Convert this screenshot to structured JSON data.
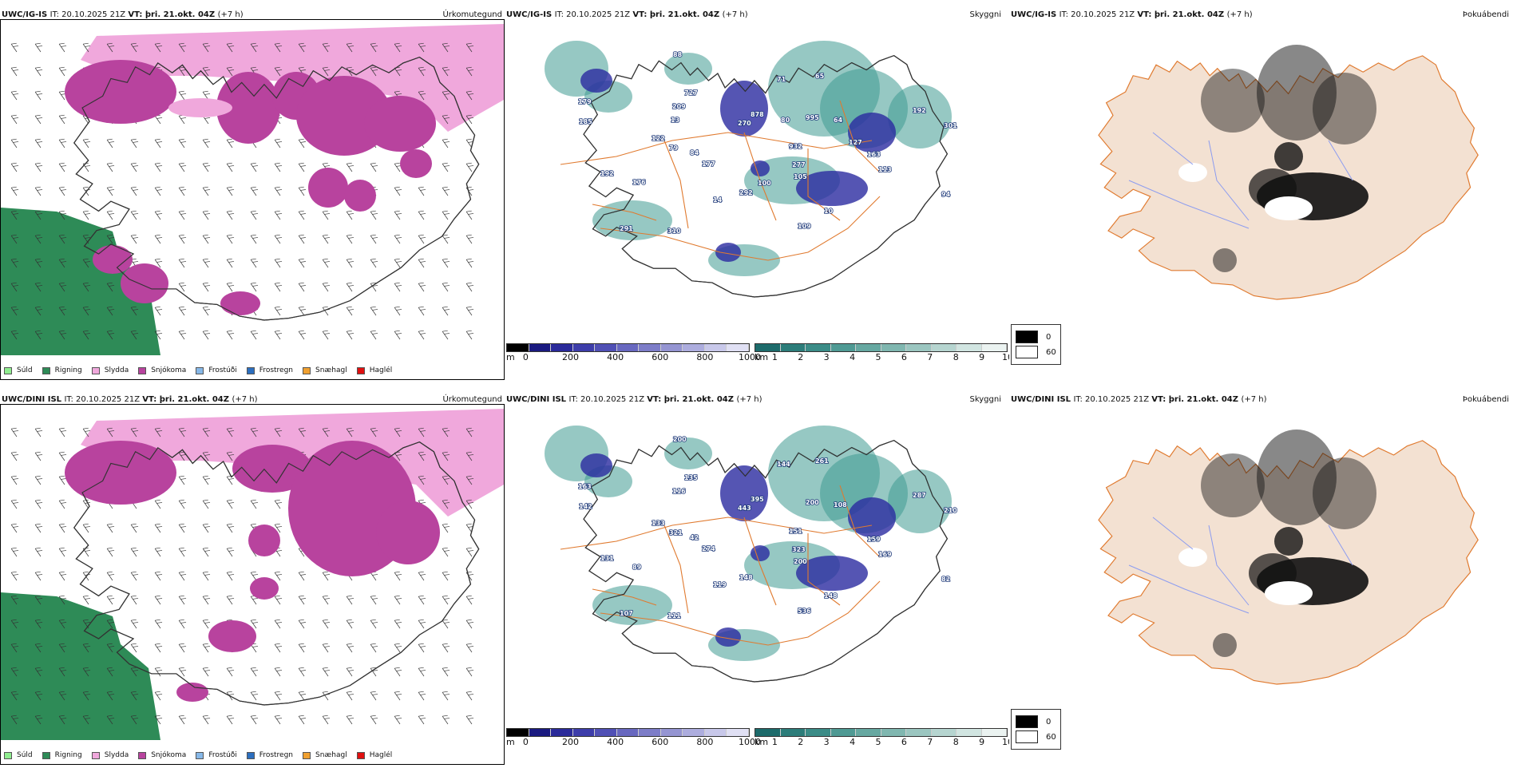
{
  "rows": [
    {
      "model": "UWC/IG-IS",
      "it_label": "IT:",
      "it_value": "20.10.2025 21Z",
      "vt_label": "VT:",
      "vt_value": "þri. 21.okt. 04Z",
      "lead": "(+7 h)",
      "cloud_labels": [
        "932",
        "177",
        "878",
        "105",
        "122",
        "64",
        "14",
        "727",
        "113",
        "192",
        "65",
        "109",
        "179",
        "301",
        "291",
        "270",
        "277",
        "79",
        "995",
        "292",
        "209",
        "163",
        "176",
        "71",
        "10",
        "185",
        "192",
        "310",
        "88",
        "94",
        "84",
        "80",
        "100",
        "13",
        "127"
      ]
    },
    {
      "model": "UWC/DINI ISL",
      "it_label": "IT:",
      "it_value": "20.10.2025 21Z",
      "vt_label": "VT:",
      "vt_value": "þri. 21.okt. 04Z",
      "lead": "(+7 h)",
      "cloud_labels": [
        "151",
        "274",
        "395",
        "200",
        "133",
        "108",
        "119",
        "135",
        "169",
        "131",
        "261",
        "536",
        "163",
        "210",
        "107",
        "443",
        "323",
        "321",
        "200",
        "148",
        "116",
        "159",
        "89",
        "144",
        "148",
        "142",
        "287",
        "111",
        "200",
        "82",
        "42"
      ]
    }
  ],
  "panel_titles": {
    "precip": "Úrkomutegund",
    "clouds": "Skyggni",
    "fog": "Þokuábendi"
  },
  "precip_legend": [
    {
      "label": "Súld",
      "color": "#90ee90"
    },
    {
      "label": "Rigning",
      "color": "#2e8b57"
    },
    {
      "label": "Slydda",
      "color": "#f0a8dc"
    },
    {
      "label": "Snjókoma",
      "color": "#b8439e"
    },
    {
      "label": "Frostúði",
      "color": "#87b8e8"
    },
    {
      "label": "Frostregn",
      "color": "#2c6fbf"
    },
    {
      "label": "Snæhagl",
      "color": "#f0a030"
    },
    {
      "label": "Haglél",
      "color": "#e01010"
    }
  ],
  "colorbar_m": {
    "unit": "m",
    "ticks": [
      "0",
      "200",
      "400",
      "600",
      "800",
      "1000"
    ],
    "colors": [
      "#000000",
      "#1a1a80",
      "#2a2a9a",
      "#3d3daa",
      "#5050b5",
      "#6868c0",
      "#7d7dc8",
      "#9595d2",
      "#adadde",
      "#c8c8ea",
      "#e0e0f4"
    ]
  },
  "colorbar_km": {
    "unit": "km",
    "ticks": [
      "1",
      "2",
      "3",
      "4",
      "5",
      "6",
      "7",
      "8",
      "9",
      "10"
    ],
    "colors": [
      "#1d6b6b",
      "#2c7d7a",
      "#3b8c87",
      "#4f9a94",
      "#66a8a1",
      "#80b7b0",
      "#9bc6c0",
      "#b6d5d0",
      "#d1e5e1",
      "#ebf3f1"
    ]
  },
  "fog_legend": [
    {
      "label": "0",
      "color": "#000000"
    },
    {
      "label": "60",
      "color": "#ffffff"
    }
  ],
  "colors": {
    "land_fog": "#f3e1d2",
    "roads": "#e07a2f",
    "rivers": "#8c9cf0",
    "coast": "#333333",
    "snow": "#b8439e",
    "sleet": "#f0a8dc",
    "rain": "#2e8b57",
    "cloud_teal": "#3f9a92",
    "cloud_blue": "#2a2aa0"
  }
}
